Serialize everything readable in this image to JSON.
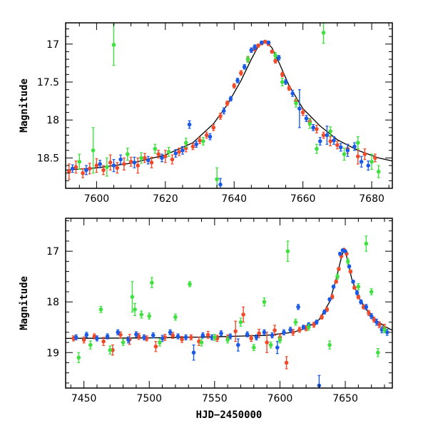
{
  "chart_data": [
    {
      "type": "scatter",
      "panel": "top",
      "xlabel": "",
      "ylabel": "Magnitude",
      "xlim": [
        7591,
        7686
      ],
      "ylim": [
        18.9,
        16.72
      ],
      "y_inverted": true,
      "xticks": [
        7600,
        7620,
        7640,
        7660,
        7680
      ],
      "yticks": [
        17,
        17.5,
        18,
        18.5
      ],
      "colors": {
        "green": "#40e040",
        "blue": "#1a5ae6",
        "red": "#f04a2a",
        "model": "#000000"
      },
      "model_curve": {
        "x": [
          7591,
          7600,
          7610,
          7620,
          7628,
          7634,
          7638,
          7642,
          7645,
          7647,
          7649,
          7651,
          7653,
          7656,
          7660,
          7665,
          7670,
          7676,
          7682,
          7686
        ],
        "y": [
          18.66,
          18.63,
          18.57,
          18.46,
          18.3,
          18.05,
          17.8,
          17.48,
          17.2,
          17.03,
          16.96,
          17.05,
          17.24,
          17.55,
          17.85,
          18.08,
          18.26,
          18.4,
          18.5,
          18.54
        ]
      },
      "series": [
        {
          "color_key": "red",
          "x": [
            7592,
            7594,
            7596,
            7598,
            7600,
            7602,
            7604,
            7606,
            7608,
            7610,
            7612,
            7614,
            7616,
            7618,
            7620,
            7622,
            7624,
            7626,
            7628,
            7630,
            7632,
            7634,
            7636,
            7638,
            7640,
            7642,
            7644,
            7646,
            7647,
            7648,
            7649,
            7650,
            7651,
            7652,
            7654,
            7656,
            7658,
            7660,
            7662,
            7664,
            7666,
            7668,
            7670,
            7673,
            7676,
            7678,
            7681
          ],
          "y": [
            18.68,
            18.62,
            18.7,
            18.64,
            18.6,
            18.66,
            18.56,
            18.63,
            18.58,
            18.55,
            18.6,
            18.5,
            18.56,
            18.45,
            18.48,
            18.52,
            18.42,
            18.37,
            18.35,
            18.27,
            18.2,
            18.1,
            17.95,
            17.78,
            17.55,
            17.38,
            17.2,
            17.06,
            17.02,
            16.99,
            16.97,
            17.0,
            17.1,
            17.22,
            17.4,
            17.58,
            17.75,
            17.9,
            18.02,
            18.12,
            18.2,
            18.28,
            18.33,
            18.38,
            18.48,
            18.45,
            18.5
          ],
          "err": [
            0.1,
            0.08,
            0.06,
            0.07,
            0.09,
            0.06,
            0.1,
            0.07,
            0.08,
            0.06,
            0.1,
            0.06,
            0.07,
            0.05,
            0.08,
            0.06,
            0.05,
            0.05,
            0.04,
            0.04,
            0.04,
            0.04,
            0.04,
            0.03,
            0.03,
            0.03,
            0.03,
            0.03,
            0.02,
            0.02,
            0.02,
            0.02,
            0.02,
            0.03,
            0.03,
            0.03,
            0.03,
            0.04,
            0.04,
            0.05,
            0.04,
            0.06,
            0.05,
            0.06,
            0.1,
            0.07,
            0.05
          ]
        },
        {
          "color_key": "blue",
          "x": [
            7593,
            7597,
            7601,
            7605,
            7607,
            7611,
            7615,
            7619,
            7623,
            7625,
            7627,
            7629,
            7633,
            7637,
            7639,
            7641,
            7643,
            7645,
            7646,
            7648,
            7650,
            7653,
            7655,
            7657,
            7659,
            7661,
            7663,
            7665,
            7667,
            7669,
            7671,
            7673,
            7675,
            7677,
            7679,
            7636
          ],
          "y": [
            18.64,
            18.66,
            18.58,
            18.6,
            18.52,
            18.56,
            18.53,
            18.5,
            18.44,
            18.4,
            18.06,
            18.32,
            18.22,
            17.88,
            17.72,
            17.48,
            17.3,
            17.08,
            17.04,
            16.98,
            16.98,
            17.18,
            17.5,
            17.65,
            17.85,
            17.98,
            18.1,
            18.28,
            18.2,
            18.27,
            18.36,
            18.4,
            18.35,
            18.55,
            18.6,
            18.85
          ],
          "err": [
            0.05,
            0.06,
            0.05,
            0.08,
            0.06,
            0.07,
            0.05,
            0.05,
            0.05,
            0.05,
            0.05,
            0.04,
            0.04,
            0.04,
            0.03,
            0.03,
            0.03,
            0.03,
            0.03,
            0.02,
            0.02,
            0.03,
            0.03,
            0.04,
            0.25,
            0.04,
            0.04,
            0.05,
            0.12,
            0.05,
            0.05,
            0.08,
            0.05,
            0.07,
            0.06,
            0.08
          ]
        },
        {
          "color_key": "green",
          "x": [
            7595,
            7599,
            7603,
            7605,
            7609,
            7613,
            7617,
            7621,
            7626,
            7631,
            7635,
            7644,
            7652,
            7654,
            7658,
            7662,
            7664,
            7666,
            7668,
            7672,
            7676,
            7680,
            7682
          ],
          "y": [
            18.55,
            18.4,
            18.62,
            17.01,
            18.45,
            18.5,
            18.38,
            18.42,
            18.3,
            18.28,
            18.78,
            17.2,
            17.15,
            17.5,
            17.78,
            18.05,
            18.38,
            16.85,
            18.15,
            18.45,
            18.3,
            18.55,
            18.68
          ],
          "err": [
            0.1,
            0.3,
            0.12,
            0.27,
            0.08,
            0.07,
            0.06,
            0.06,
            0.06,
            0.05,
            0.15,
            0.04,
            0.04,
            0.05,
            0.05,
            0.06,
            0.06,
            0.14,
            0.06,
            0.08,
            0.08,
            0.1,
            0.08
          ]
        }
      ]
    },
    {
      "type": "scatter",
      "panel": "bottom",
      "xlabel": "HJD−2450000",
      "ylabel": "Magnitude",
      "xlim": [
        7436,
        7686
      ],
      "ylim": [
        19.7,
        16.35
      ],
      "y_inverted": true,
      "xticks": [
        7450,
        7500,
        7550,
        7600,
        7650
      ],
      "yticks": [
        17,
        18,
        19
      ],
      "colors": {
        "green": "#40e040",
        "blue": "#1a5ae6",
        "red": "#f04a2a",
        "model": "#000000"
      },
      "model_curve": {
        "x": [
          7436,
          7500,
          7550,
          7590,
          7610,
          7620,
          7630,
          7638,
          7643,
          7647,
          7649,
          7651,
          7655,
          7660,
          7666,
          7672,
          7680,
          7686
        ],
        "y": [
          18.72,
          18.71,
          18.69,
          18.66,
          18.6,
          18.52,
          18.35,
          18.0,
          17.55,
          17.12,
          16.97,
          17.1,
          17.55,
          17.9,
          18.15,
          18.33,
          18.48,
          18.56
        ]
      },
      "series": [
        {
          "color_key": "red",
          "x": [
            7442,
            7450,
            7458,
            7465,
            7472,
            7478,
            7485,
            7492,
            7498,
            7505,
            7512,
            7518,
            7525,
            7532,
            7538,
            7545,
            7552,
            7560,
            7566,
            7572,
            7578,
            7584,
            7590,
            7596,
            7600,
            7605,
            7610,
            7615,
            7620,
            7626,
            7632,
            7636,
            7640,
            7643,
            7645,
            7647,
            7649,
            7651,
            7654,
            7657,
            7660,
            7664,
            7668,
            7672,
            7676,
            7680
          ],
          "y": [
            18.72,
            18.75,
            18.68,
            18.78,
            18.95,
            18.65,
            18.74,
            18.68,
            18.72,
            18.88,
            18.7,
            18.66,
            18.74,
            18.7,
            18.78,
            18.65,
            18.72,
            18.7,
            18.58,
            18.25,
            18.72,
            18.62,
            18.8,
            18.56,
            18.7,
            19.2,
            18.6,
            18.55,
            18.52,
            18.45,
            18.3,
            18.15,
            17.9,
            17.6,
            17.35,
            17.1,
            16.97,
            17.05,
            17.4,
            17.72,
            17.9,
            18.1,
            18.22,
            18.35,
            18.45,
            18.5
          ],
          "err": [
            0.05,
            0.06,
            0.05,
            0.08,
            0.1,
            0.06,
            0.1,
            0.06,
            0.05,
            0.1,
            0.06,
            0.06,
            0.06,
            0.05,
            0.08,
            0.07,
            0.06,
            0.05,
            0.2,
            0.15,
            0.06,
            0.08,
            0.2,
            0.1,
            0.06,
            0.12,
            0.06,
            0.05,
            0.05,
            0.05,
            0.04,
            0.04,
            0.04,
            0.03,
            0.03,
            0.02,
            0.02,
            0.02,
            0.03,
            0.03,
            0.04,
            0.04,
            0.05,
            0.05,
            0.06,
            0.06
          ]
        },
        {
          "color_key": "blue",
          "x": [
            7444,
            7452,
            7460,
            7468,
            7476,
            7484,
            7490,
            7496,
            7503,
            7510,
            7516,
            7522,
            7528,
            7534,
            7541,
            7548,
            7555,
            7562,
            7568,
            7575,
            7582,
            7588,
            7594,
            7598,
            7603,
            7608,
            7614,
            7618,
            7622,
            7628,
            7630,
            7634,
            7638,
            7641,
            7646,
            7648,
            7650,
            7653,
            7656,
            7659,
            7662,
            7666,
            7670,
            7674,
            7678,
            7682
          ],
          "y": [
            18.7,
            18.65,
            18.72,
            18.68,
            18.6,
            18.75,
            18.64,
            18.7,
            18.66,
            18.72,
            18.6,
            18.68,
            18.7,
            19.0,
            18.66,
            18.7,
            18.62,
            18.68,
            18.85,
            18.64,
            18.7,
            18.6,
            18.66,
            18.9,
            18.6,
            18.55,
            18.1,
            18.5,
            18.45,
            18.4,
            19.65,
            18.2,
            17.95,
            17.7,
            17.05,
            16.98,
            17.0,
            17.3,
            17.6,
            17.82,
            18.0,
            18.1,
            18.28,
            18.4,
            18.55,
            18.6
          ],
          "err": [
            0.05,
            0.05,
            0.05,
            0.05,
            0.05,
            0.06,
            0.05,
            0.05,
            0.05,
            0.06,
            0.05,
            0.05,
            0.05,
            0.15,
            0.05,
            0.05,
            0.05,
            0.05,
            0.12,
            0.05,
            0.05,
            0.05,
            0.05,
            0.12,
            0.05,
            0.05,
            0.05,
            0.04,
            0.04,
            0.04,
            0.2,
            0.04,
            0.03,
            0.03,
            0.03,
            0.02,
            0.02,
            0.03,
            0.03,
            0.04,
            0.04,
            0.05,
            0.05,
            0.06,
            0.06,
            0.06
          ]
        },
        {
          "color_key": "green",
          "x": [
            7446,
            7455,
            7463,
            7470,
            7480,
            7487,
            7489,
            7494,
            7500,
            7502,
            7508,
            7520,
            7531,
            7540,
            7550,
            7560,
            7570,
            7580,
            7588,
            7593,
            7600,
            7606,
            7612,
            7622,
            7638,
            7644,
            7652,
            7660,
            7666,
            7670,
            7675,
            7680
          ],
          "y": [
            19.1,
            18.85,
            18.15,
            18.95,
            18.8,
            17.9,
            18.15,
            18.25,
            18.28,
            17.62,
            18.8,
            18.3,
            17.65,
            18.8,
            18.7,
            18.75,
            18.4,
            18.9,
            18.0,
            18.85,
            18.75,
            17.0,
            18.4,
            18.5,
            18.85,
            17.5,
            17.2,
            17.7,
            16.85,
            17.8,
            19.0,
            18.55
          ],
          "err": [
            0.1,
            0.08,
            0.06,
            0.08,
            0.06,
            0.3,
            0.12,
            0.07,
            0.06,
            0.1,
            0.07,
            0.06,
            0.05,
            0.07,
            0.06,
            0.06,
            0.08,
            0.06,
            0.08,
            0.06,
            0.06,
            0.2,
            0.06,
            0.06,
            0.08,
            0.05,
            0.05,
            0.06,
            0.15,
            0.06,
            0.08,
            0.06
          ]
        }
      ]
    }
  ]
}
